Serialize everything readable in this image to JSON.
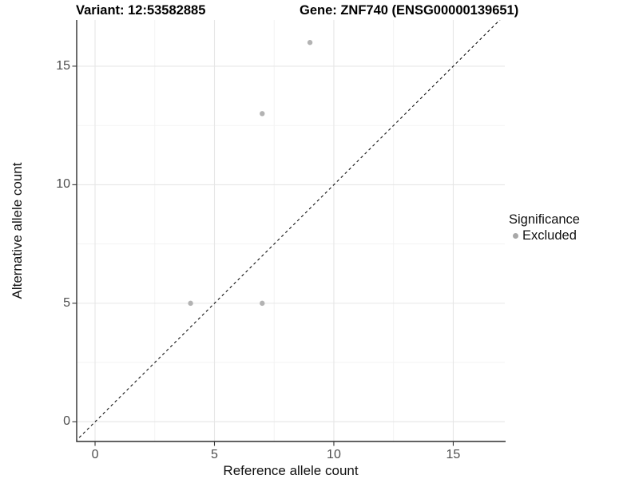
{
  "title": {
    "variant": "Variant: 12:53582885",
    "gene": "Gene: ZNF740 (ENSG00000139651)"
  },
  "chart_data": {
    "type": "scatter",
    "title": "Variant: 12:53582885    Gene: ZNF740 (ENSG00000139651)",
    "xlabel": "Reference allele count",
    "ylabel": "Alternative allele count",
    "xticks": [
      0,
      5,
      10,
      15
    ],
    "yticks": [
      0,
      5,
      10,
      15
    ],
    "minor_xticks": [
      2.5,
      7.5,
      12.5
    ],
    "minor_yticks": [
      2.5,
      7.5,
      12.5
    ],
    "xlim": [
      -0.77,
      17.16
    ],
    "ylim": [
      -0.83,
      16.95
    ],
    "grid": true,
    "identity_line": {
      "type": "y=x",
      "style": "dashed",
      "color": "#111111"
    },
    "series": [
      {
        "name": "Excluded",
        "color": "#b3b3b3",
        "points": [
          [
            4,
            5
          ],
          [
            7,
            5
          ],
          [
            7,
            13
          ],
          [
            9,
            16
          ]
        ]
      }
    ],
    "legend": {
      "position": "right",
      "title": "Significance",
      "items": [
        {
          "label": "Excluded",
          "color": "#a8a8a8"
        }
      ]
    }
  },
  "colors": {
    "major_grid": "#e6e6e6",
    "minor_grid": "#f2f2f2",
    "axis_line": "#2e2e2e",
    "tick_mark": "#333333",
    "tick_text": "#4d4d4d"
  }
}
